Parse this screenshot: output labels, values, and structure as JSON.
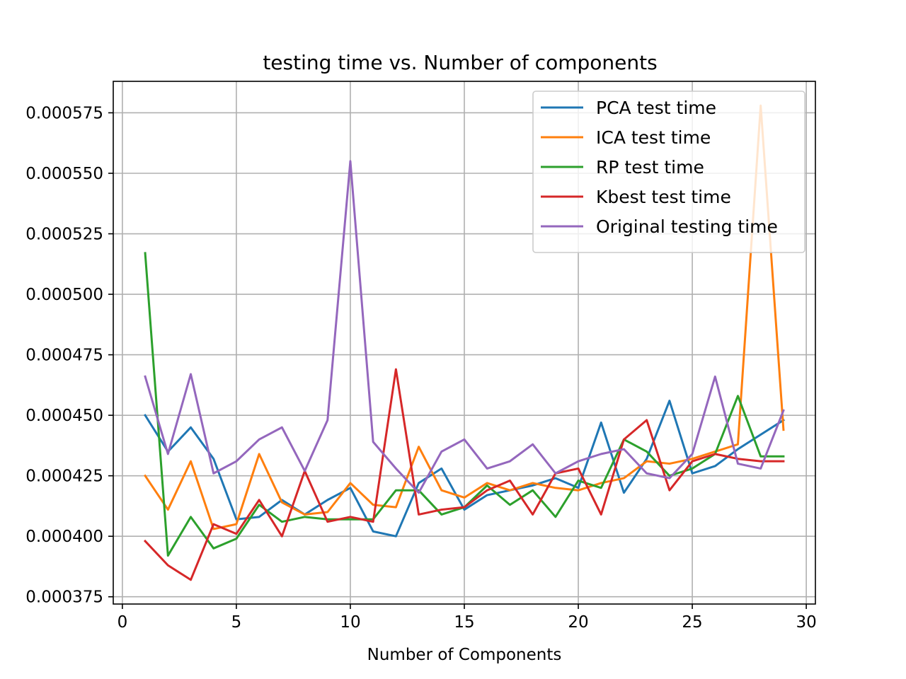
{
  "chart_data": {
    "type": "line",
    "title": "testing time  vs. Number of components",
    "xlabel": "Number of Components",
    "ylabel": "",
    "xlim": [
      -0.4,
      30.4
    ],
    "ylim": [
      0.000372,
      0.000588
    ],
    "xticks": [
      0,
      5,
      10,
      15,
      20,
      25,
      30
    ],
    "xtick_labels": [
      "0",
      "5",
      "10",
      "15",
      "20",
      "25",
      "30"
    ],
    "yticks": [
      0.000375,
      0.0004,
      0.000425,
      0.00045,
      0.000475,
      0.0005,
      0.000525,
      0.00055,
      0.000575
    ],
    "ytick_labels": [
      "0.000375",
      "0.000400",
      "0.000425",
      "0.000450",
      "0.000475",
      "0.000500",
      "0.000525",
      "0.000550",
      "0.000575"
    ],
    "grid": true,
    "legend_position": "top-right",
    "x": [
      1,
      2,
      3,
      4,
      5,
      6,
      7,
      8,
      9,
      10,
      11,
      12,
      13,
      14,
      15,
      16,
      17,
      18,
      19,
      20,
      21,
      22,
      23,
      24,
      25,
      26,
      27,
      28,
      29
    ],
    "series": [
      {
        "name": "PCA test time",
        "color": "#1f77b4",
        "values": [
          0.00045,
          0.000435,
          0.000445,
          0.000432,
          0.000407,
          0.000408,
          0.000415,
          0.000409,
          0.000415,
          0.00042,
          0.000402,
          0.0004,
          0.000422,
          0.000428,
          0.000411,
          0.000417,
          0.000419,
          0.000421,
          0.000424,
          0.00042,
          0.000447,
          0.000418,
          0.000432,
          0.000456,
          0.000426,
          0.000429,
          0.000436,
          0.000442,
          0.000448
        ]
      },
      {
        "name": "ICA test time",
        "color": "#ff7f0e",
        "values": [
          0.000425,
          0.000411,
          0.000431,
          0.000403,
          0.000405,
          0.000434,
          0.000414,
          0.000409,
          0.00041,
          0.000422,
          0.000413,
          0.000412,
          0.000437,
          0.000419,
          0.000416,
          0.000422,
          0.000419,
          0.000422,
          0.00042,
          0.000419,
          0.000422,
          0.000424,
          0.000431,
          0.00043,
          0.000432,
          0.000435,
          0.000438,
          0.000578,
          0.000444
        ]
      },
      {
        "name": "RP test time",
        "color": "#2ca02c",
        "values": [
          0.000517,
          0.000392,
          0.000408,
          0.000395,
          0.000399,
          0.000413,
          0.000406,
          0.000408,
          0.000407,
          0.000407,
          0.000407,
          0.000419,
          0.000419,
          0.000409,
          0.000412,
          0.000421,
          0.000413,
          0.000419,
          0.000408,
          0.000423,
          0.00042,
          0.00044,
          0.000435,
          0.000425,
          0.000428,
          0.000434,
          0.000458,
          0.000433,
          0.000433
        ]
      },
      {
        "name": "Kbest test time",
        "color": "#d62728",
        "values": [
          0.000398,
          0.000388,
          0.000382,
          0.000405,
          0.000401,
          0.000415,
          0.0004,
          0.000427,
          0.000406,
          0.000408,
          0.000406,
          0.000469,
          0.000409,
          0.000411,
          0.000412,
          0.000419,
          0.000423,
          0.000409,
          0.000426,
          0.000428,
          0.000409,
          0.00044,
          0.000448,
          0.000419,
          0.000431,
          0.000434,
          0.000432,
          0.000431,
          0.000431
        ]
      },
      {
        "name": "Original testing time",
        "color": "#9467bd",
        "values": [
          0.000466,
          0.000434,
          0.000467,
          0.000426,
          0.000431,
          0.00044,
          0.000445,
          0.000427,
          0.000448,
          0.000555,
          0.000439,
          0.000428,
          0.000418,
          0.000435,
          0.00044,
          0.000428,
          0.000431,
          0.000438,
          0.000426,
          0.000431,
          0.000434,
          0.000436,
          0.000426,
          0.000424,
          0.000434,
          0.000466,
          0.00043,
          0.000428,
          0.000452
        ]
      }
    ]
  }
}
